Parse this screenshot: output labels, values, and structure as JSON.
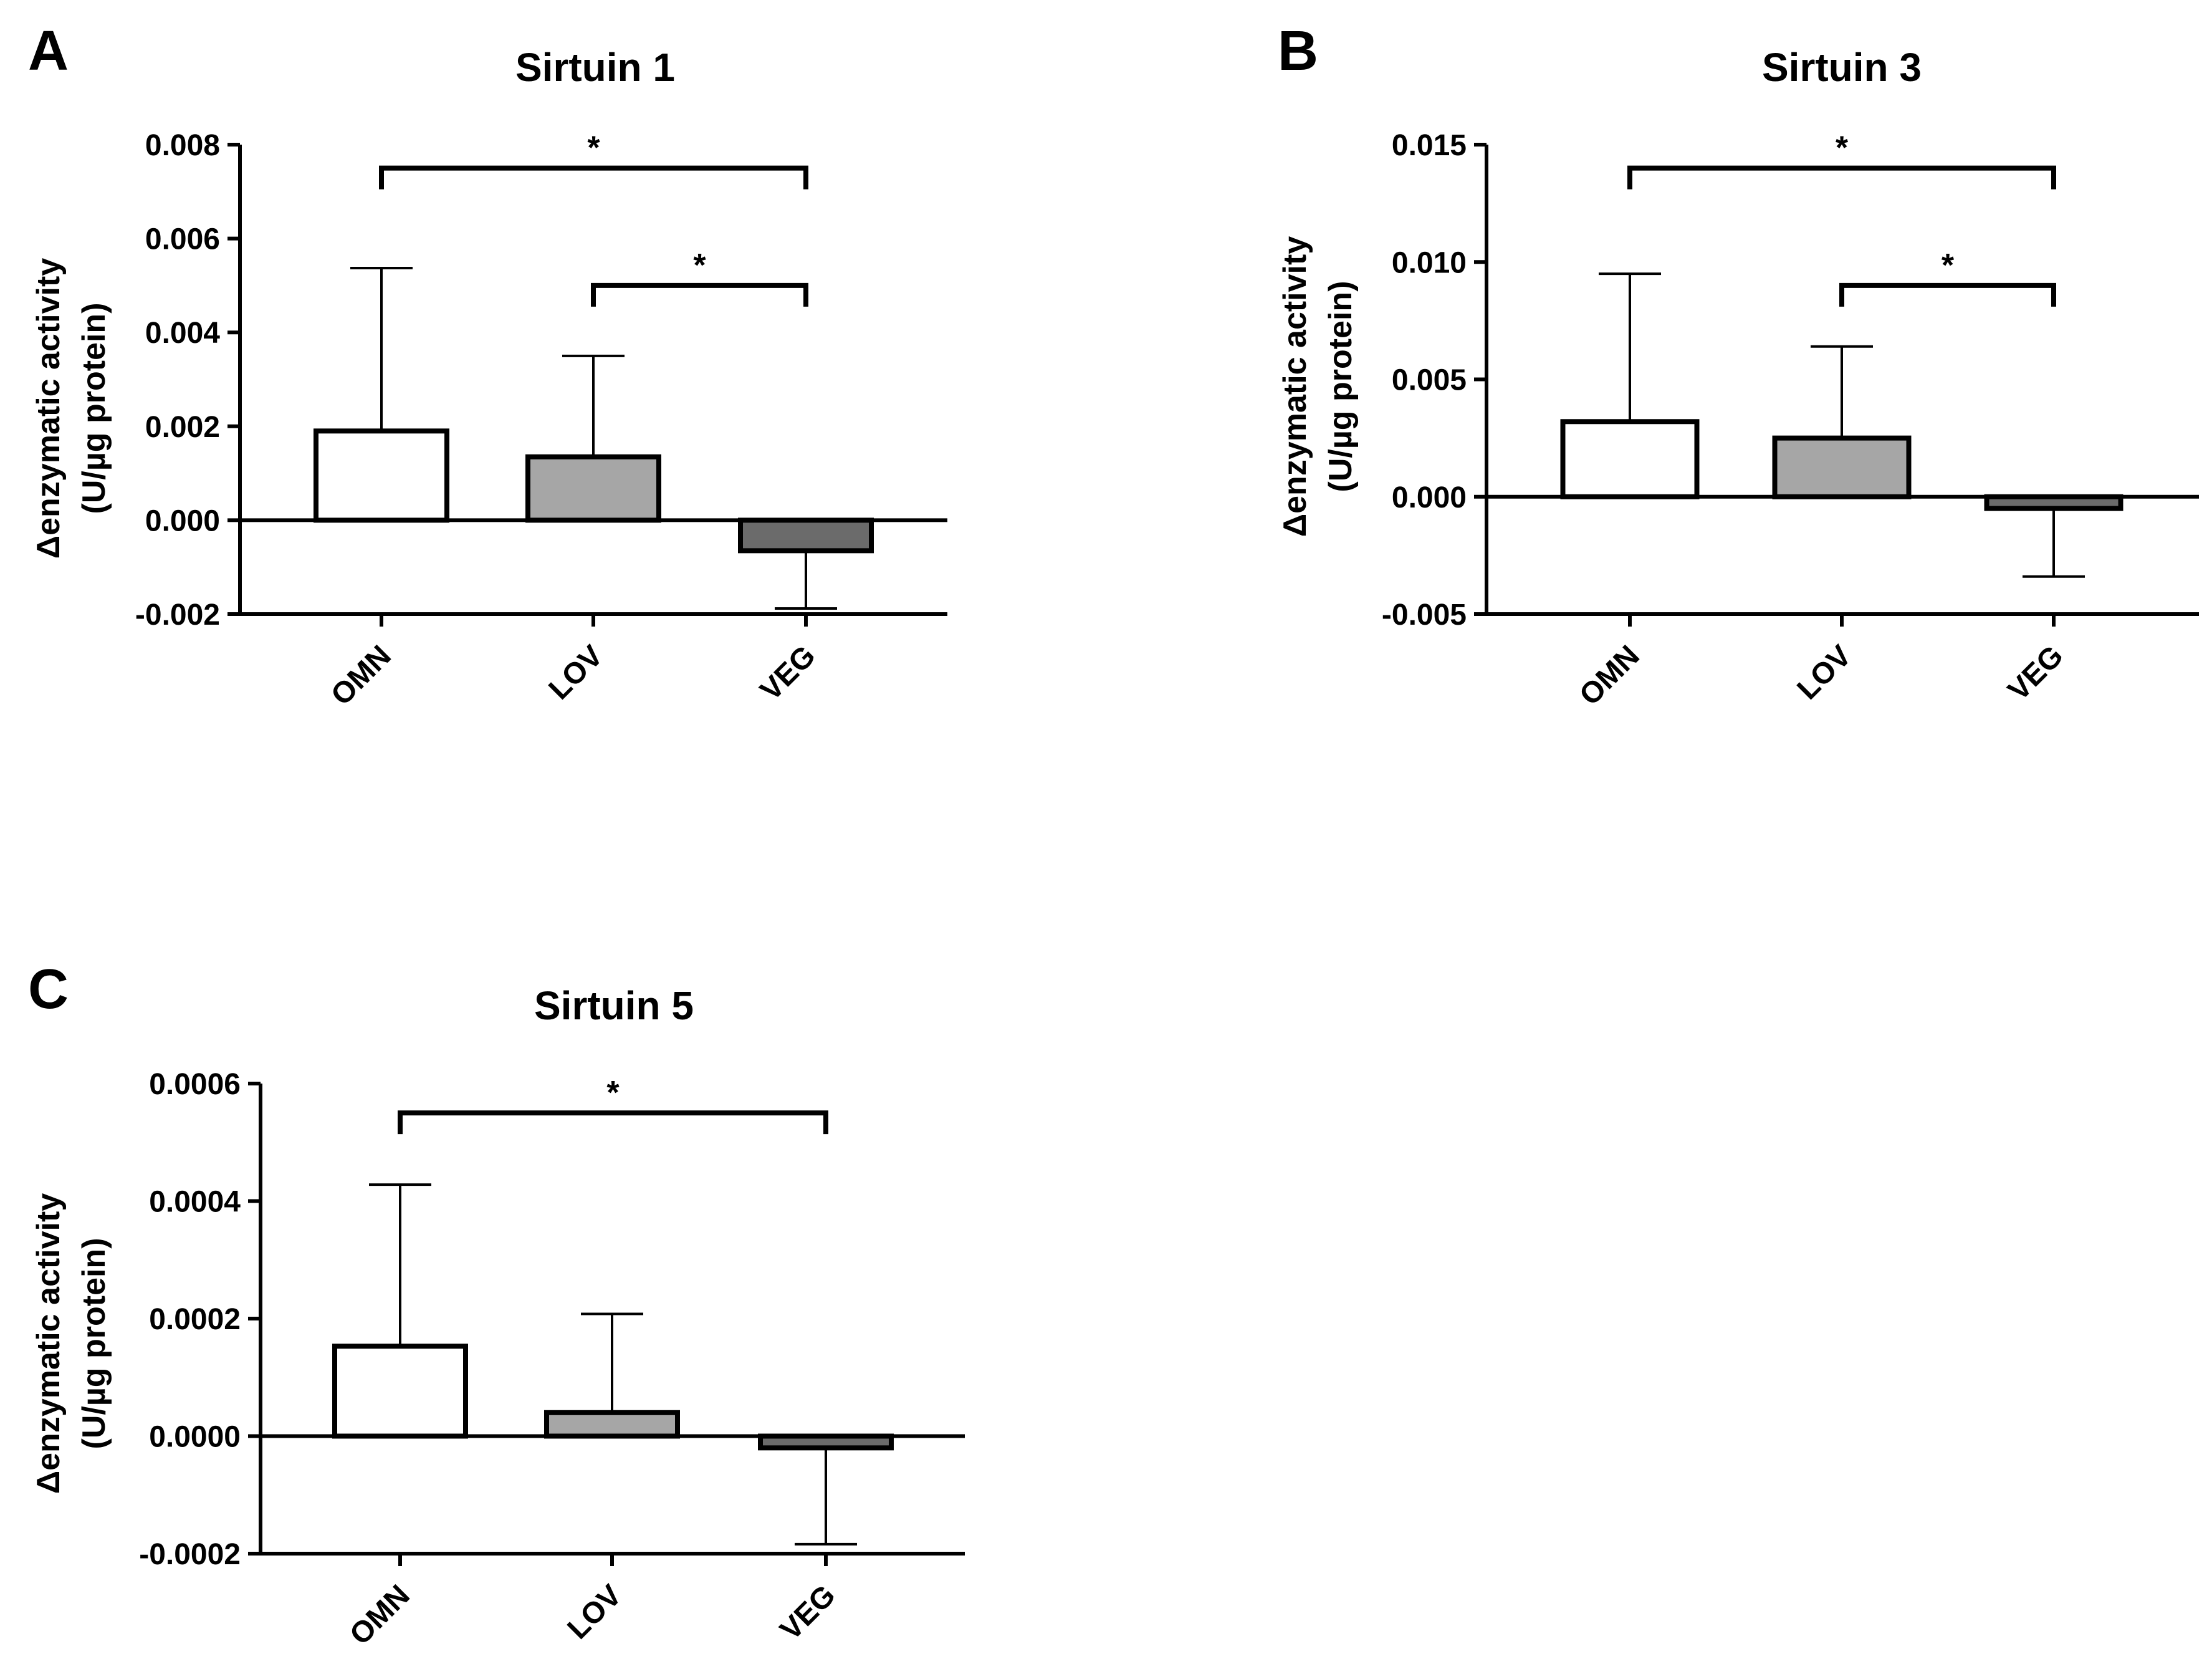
{
  "chart_data": [
    {
      "panel_label": "A",
      "type": "bar",
      "title": "Sirtuin 1",
      "ylabel_line1": "Δenzymatic activity",
      "ylabel_line2": "(U/µg protein)",
      "categories": [
        "OMN",
        "LOV",
        "VEG"
      ],
      "values": [
        0.0019,
        0.00135,
        -0.00065
      ],
      "error": [
        0.00347,
        0.00215,
        0.00123
      ],
      "bar_colors": [
        "#ffffff",
        "#a6a6a6",
        "#6b6b6b"
      ],
      "ylim": [
        -0.002,
        0.008
      ],
      "ytick_values": [
        -0.002,
        0.0,
        0.002,
        0.004,
        0.006,
        0.008
      ],
      "ytick_labels": [
        "-0.002",
        "0.000",
        "0.002",
        "0.004",
        "0.006",
        "0.008"
      ],
      "significance": [
        {
          "from": 0,
          "to": 2,
          "y": 0.0075,
          "label": "*"
        },
        {
          "from": 1,
          "to": 2,
          "y": 0.005,
          "label": "*"
        }
      ]
    },
    {
      "panel_label": "B",
      "type": "bar",
      "title": "Sirtuin 3",
      "ylabel_line1": "Δenzymatic activity",
      "ylabel_line2": "(U/µg protein)",
      "categories": [
        "OMN",
        "LOV",
        "VEG"
      ],
      "values": [
        0.0032,
        0.0025,
        -0.0005
      ],
      "error": [
        0.0063,
        0.0039,
        0.0029
      ],
      "bar_colors": [
        "#ffffff",
        "#a6a6a6",
        "#6b6b6b"
      ],
      "ylim": [
        -0.005,
        0.015
      ],
      "ytick_values": [
        -0.005,
        0.0,
        0.005,
        0.01,
        0.015
      ],
      "ytick_labels": [
        "-0.005",
        "0.000",
        "0.005",
        "0.010",
        "0.015"
      ],
      "significance": [
        {
          "from": 0,
          "to": 2,
          "y": 0.014,
          "label": "*"
        },
        {
          "from": 1,
          "to": 2,
          "y": 0.009,
          "label": "*"
        }
      ]
    },
    {
      "panel_label": "C",
      "type": "bar",
      "title": "Sirtuin 5",
      "ylabel_line1": "Δenzymatic activity",
      "ylabel_line2": "(U/µg protein)",
      "categories": [
        "OMN",
        "LOV",
        "VEG"
      ],
      "values": [
        0.000153,
        4e-05,
        -2e-05
      ],
      "error": [
        0.000275,
        0.000168,
        0.000164
      ],
      "bar_colors": [
        "#ffffff",
        "#a6a6a6",
        "#6b6b6b"
      ],
      "ylim": [
        -0.0002,
        0.0006
      ],
      "ytick_values": [
        -0.0002,
        0.0,
        0.0002,
        0.0004,
        0.0006
      ],
      "ytick_labels": [
        "-0.0002",
        "0.0000",
        "0.0002",
        "0.0004",
        "0.0006"
      ],
      "significance": [
        {
          "from": 0,
          "to": 2,
          "y": 0.00055,
          "label": "*"
        }
      ]
    }
  ]
}
